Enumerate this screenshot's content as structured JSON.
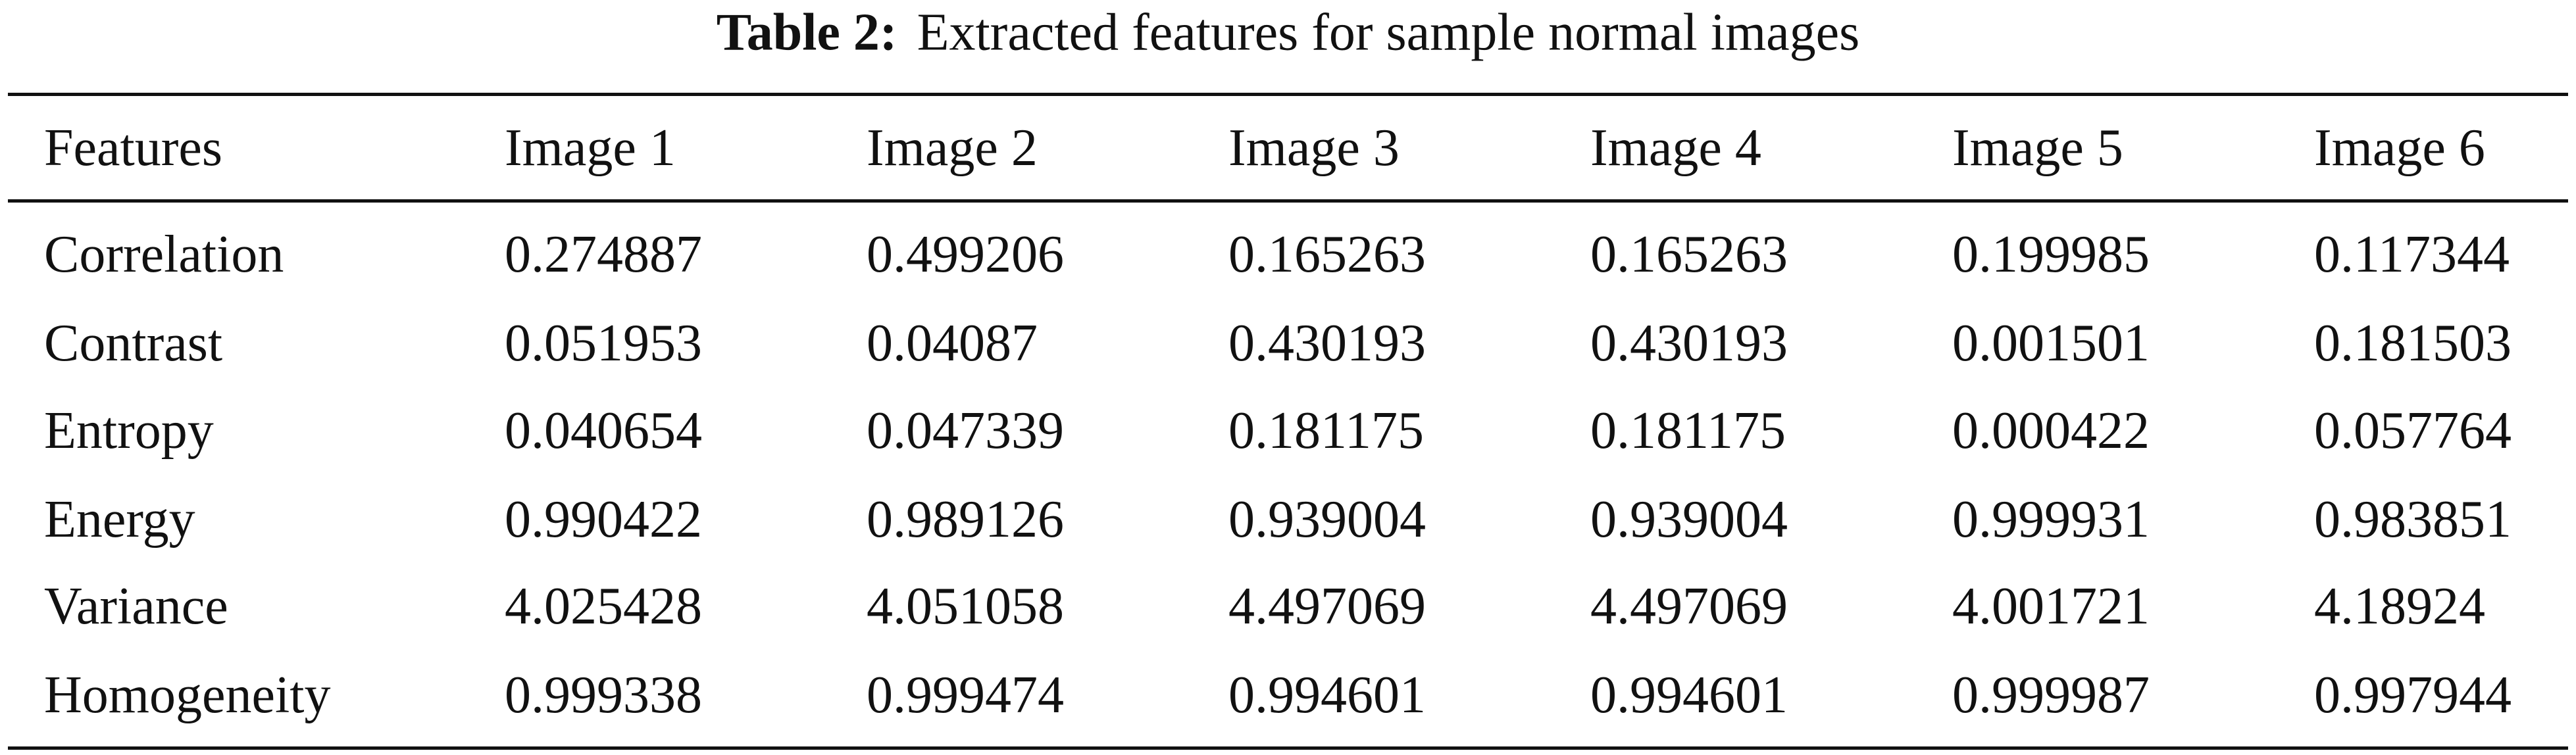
{
  "caption": {
    "label": "Table 2:",
    "text": "Extracted features for sample normal images"
  },
  "table": {
    "header": [
      "Features",
      "Image 1",
      "Image 2",
      "Image 3",
      "Image 4",
      "Image 5",
      "Image 6"
    ],
    "rows": [
      [
        "Correlation",
        "0.274887",
        "0.499206",
        "0.165263",
        "0.165263",
        "0.199985",
        "0.117344"
      ],
      [
        "Contrast",
        "0.051953",
        "0.04087",
        "0.430193",
        "0.430193",
        "0.001501",
        "0.181503"
      ],
      [
        "Entropy",
        "0.040654",
        "0.047339",
        "0.181175",
        "0.181175",
        "0.000422",
        "0.057764"
      ],
      [
        "Energy",
        "0.990422",
        "0.989126",
        "0.939004",
        "0.939004",
        "0.999931",
        "0.983851"
      ],
      [
        "Variance",
        "4.025428",
        "4.051058",
        "4.497069",
        "4.497069",
        "4.001721",
        "4.18924"
      ],
      [
        "Homogeneity",
        "0.999338",
        "0.999474",
        "0.994601",
        "0.994601",
        "0.999987",
        "0.997944"
      ]
    ]
  }
}
